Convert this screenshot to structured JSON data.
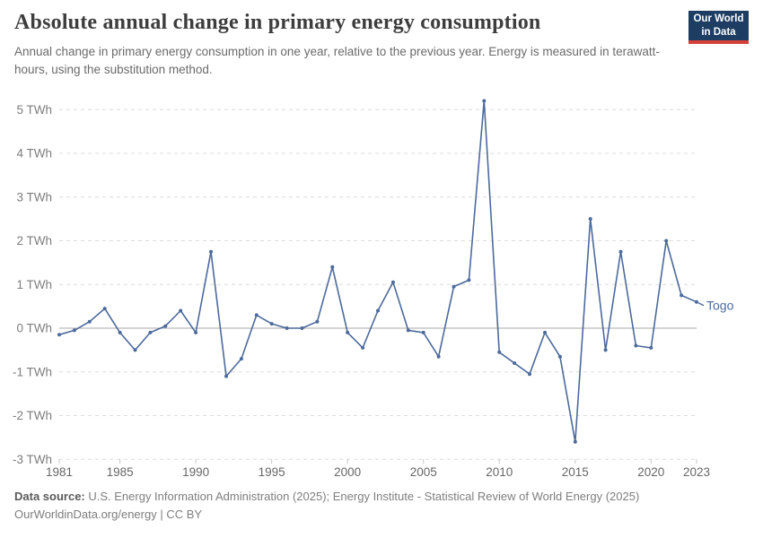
{
  "header": {
    "title": "Absolute annual change in primary energy consumption",
    "subtitle": "Annual change in primary energy consumption in one year, relative to the previous year. Energy is measured in terawatt-hours, using the substitution method.",
    "logo": {
      "line1": "Our World",
      "line2": "in Data"
    }
  },
  "chart_data": {
    "type": "line",
    "title": "Absolute annual change in primary energy consumption",
    "unit": "TWh",
    "entity": "Togo",
    "x": [
      1981,
      1982,
      1983,
      1984,
      1985,
      1986,
      1987,
      1988,
      1989,
      1990,
      1991,
      1992,
      1993,
      1994,
      1995,
      1996,
      1997,
      1998,
      1999,
      2000,
      2001,
      2002,
      2003,
      2004,
      2005,
      2006,
      2007,
      2008,
      2009,
      2010,
      2011,
      2012,
      2013,
      2014,
      2015,
      2016,
      2017,
      2018,
      2019,
      2020,
      2021,
      2022,
      2023
    ],
    "series": [
      {
        "name": "Togo",
        "color": "#4c6a9c",
        "values": [
          -0.15,
          -0.05,
          0.15,
          0.45,
          -0.1,
          -0.5,
          -0.1,
          0.05,
          0.4,
          -0.1,
          1.75,
          -1.1,
          -0.7,
          0.3,
          0.1,
          0.0,
          0.0,
          0.15,
          1.4,
          -0.1,
          -0.45,
          0.4,
          1.05,
          -0.05,
          -0.1,
          -0.65,
          0.95,
          1.1,
          5.2,
          -0.55,
          -0.8,
          -1.05,
          -0.1,
          -0.65,
          -2.6,
          2.5,
          -0.5,
          1.75,
          -0.4,
          -0.45,
          2.0,
          0.75,
          0.6
        ]
      }
    ],
    "ylim": [
      -3,
      5
    ],
    "yticks": [
      5,
      4,
      3,
      2,
      1,
      0,
      -1,
      -2,
      -3
    ],
    "ytick_labels": [
      "5 TWh",
      "4 TWh",
      "3 TWh",
      "2 TWh",
      "1 TWh",
      "0 TWh",
      "-1 TWh",
      "-2 TWh",
      "-3 TWh"
    ],
    "xticks": [
      1981,
      1985,
      1990,
      1995,
      2000,
      2005,
      2010,
      2015,
      2020,
      2023
    ],
    "grid": "horizontal-dashed",
    "zero_line": true,
    "legend_position": "end-of-line-label"
  },
  "footer": {
    "source_label": "Data source:",
    "source_text": " U.S. Energy Information Administration (2025); Energy Institute - Statistical Review of World Energy (2025)",
    "license_text": "OurWorldinData.org/energy | CC BY"
  },
  "colors": {
    "line": "#4c6a9c",
    "grid": "#dcdcdc",
    "zero_line": "#a8a8a8",
    "tick": "#c8c8c8",
    "y_axis_text": "#7d7d7d",
    "x_axis_text": "#666666",
    "logo_bg": "#1d3d63",
    "logo_accent": "#d4403a"
  }
}
